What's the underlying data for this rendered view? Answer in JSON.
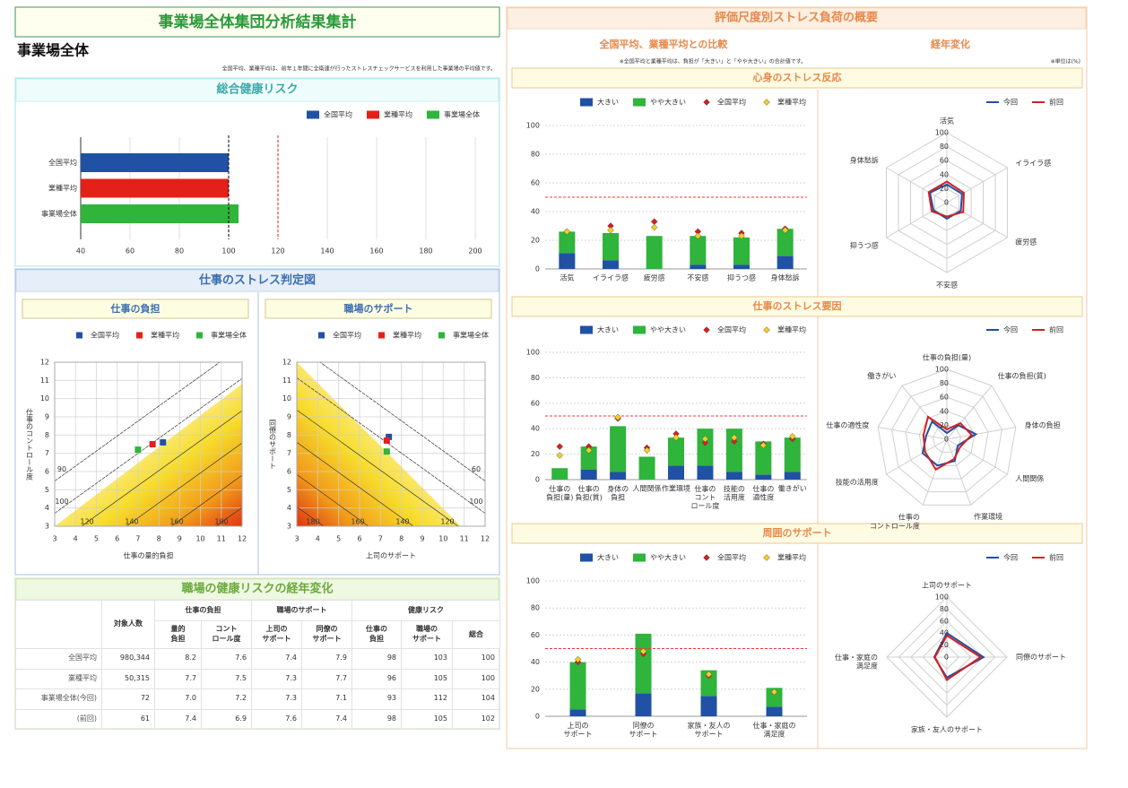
{
  "header": {
    "title": "事業場全体集団分析結果集計",
    "subtitle": "事業場全体",
    "note": "全国平均、業種平均は、前年１年間に全衛連が行ったストレスチェックサービスを利用した事業場の平均値です。"
  },
  "sections": {
    "job_stress": "仕事のストレス判定図"
  },
  "right_panel": {
    "title": "評価尺度別ストレス負荷の概要",
    "compare_heading": "全国平均、業種平均との比較",
    "trend_heading": "経年変化",
    "note": "※全国平均と業種平均は、負担が「大きい」と「やや大きい」の合計値です。",
    "unit_note": "※単位は(%)"
  },
  "chart_data": [
    {
      "type": "hbar",
      "title": "総合健康リスク",
      "categories": [
        "全国平均",
        "業種平均",
        "事業場全体"
      ],
      "values": [
        100,
        100,
        104
      ],
      "colors": [
        "#2151a5",
        "#e32119",
        "#2fb43c"
      ],
      "xlim": [
        40,
        200
      ],
      "xticks": [
        40,
        60,
        80,
        100,
        120,
        140,
        160,
        180,
        200
      ],
      "grid": true,
      "legend": true,
      "reference_lines": [
        {
          "value": 100,
          "color": "#000000"
        },
        {
          "value": 120,
          "color": "#e32119"
        }
      ]
    },
    {
      "type": "scatter",
      "title": "仕事の負担",
      "xlabel": "仕事の量的負担",
      "ylabel": "仕事のコントロール度",
      "xlim": [
        3,
        12
      ],
      "ylim": [
        3,
        12
      ],
      "xticks": [
        3,
        4,
        5,
        6,
        7,
        8,
        9,
        10,
        11,
        12
      ],
      "yticks": [
        3,
        4,
        5,
        6,
        7,
        8,
        9,
        10,
        11,
        12
      ],
      "grid": true,
      "gradient_corner": "bottom-right",
      "contours": [
        90,
        100,
        120,
        140,
        160,
        180
      ],
      "series": [
        {
          "name": "全国平均",
          "color": "#2151a5",
          "x": [
            8.2
          ],
          "values": [
            7.6
          ]
        },
        {
          "name": "業種平均",
          "color": "#e32119",
          "x": [
            7.7
          ],
          "values": [
            7.5
          ]
        },
        {
          "name": "事業場全体",
          "color": "#2fb43c",
          "x": [
            7.0
          ],
          "values": [
            7.2
          ]
        }
      ]
    },
    {
      "type": "scatter",
      "title": "職場のサポート",
      "xlabel": "上司のサポート",
      "ylabel": "同僚のサポート",
      "xlim": [
        3,
        12
      ],
      "ylim": [
        3,
        12
      ],
      "xticks": [
        3,
        4,
        5,
        6,
        7,
        8,
        9,
        10,
        11,
        12
      ],
      "yticks": [
        3,
        4,
        5,
        6,
        7,
        8,
        9,
        10,
        11,
        12
      ],
      "grid": true,
      "gradient_corner": "bottom-left",
      "contours": [
        60,
        100,
        120,
        140,
        160,
        180
      ],
      "series": [
        {
          "name": "全国平均",
          "color": "#2151a5",
          "x": [
            7.4
          ],
          "values": [
            7.9
          ]
        },
        {
          "name": "業種平均",
          "color": "#e32119",
          "x": [
            7.3
          ],
          "values": [
            7.7
          ]
        },
        {
          "name": "事業場全体",
          "color": "#2fb43c",
          "x": [
            7.3
          ],
          "values": [
            7.1
          ]
        }
      ]
    },
    {
      "type": "stacked_bar",
      "title": "心身のストレス反応",
      "categories": [
        "活気",
        "イライラ感",
        "疲労感",
        "不安感",
        "抑うつ感",
        "身体愁訴"
      ],
      "ylim": [
        0,
        100
      ],
      "yticks": [
        0,
        20,
        40,
        60,
        80,
        100
      ],
      "grid": true,
      "series": [
        {
          "name": "大きい",
          "color": "#2151a5",
          "values": [
            11,
            6,
            0,
            3,
            3,
            9
          ]
        },
        {
          "name": "やや大きい",
          "color": "#2fb43c",
          "values": [
            15,
            19,
            23,
            20,
            19,
            19
          ]
        }
      ],
      "points": [
        {
          "name": "全国平均",
          "color": "#d42020",
          "values": [
            26,
            30,
            33,
            26,
            25,
            28
          ]
        },
        {
          "name": "業種平均",
          "color": "#f0d020",
          "values": [
            26,
            27,
            29,
            23,
            23,
            27
          ]
        }
      ],
      "reference_lines": [
        {
          "value": 50,
          "color": "#ff3030"
        }
      ]
    },
    {
      "type": "radar",
      "axes": [
        "活気",
        "イライラ感",
        "疲労感",
        "不安感",
        "抑うつ感",
        "身体愁訴"
      ],
      "rlim": [
        0,
        100
      ],
      "rticks": [
        0,
        20,
        40,
        60,
        80,
        100
      ],
      "series": [
        {
          "name": "今回",
          "color": "#2151a5",
          "values": [
            26,
            25,
            23,
            23,
            22,
            28
          ]
        },
        {
          "name": "前回",
          "color": "#d42020",
          "values": [
            30,
            28,
            27,
            20,
            25,
            30
          ]
        }
      ]
    },
    {
      "type": "stacked_bar",
      "title": "仕事のストレス要因",
      "categories": [
        "仕事の\n負担(量)",
        "仕事の\n負担(質)",
        "身体の\n負担",
        "人間関係",
        "作業環境",
        "仕事の\nコント\nロール度",
        "技能の\n活用度",
        "仕事の\n適性度",
        "働きがい"
      ],
      "ylim": [
        0,
        100
      ],
      "yticks": [
        0,
        20,
        40,
        60,
        80,
        100
      ],
      "grid": true,
      "series": [
        {
          "name": "大きい",
          "color": "#2151a5",
          "values": [
            0,
            8,
            6,
            0,
            11,
            11,
            6,
            4,
            6
          ]
        },
        {
          "name": "やや大きい",
          "color": "#2fb43c",
          "values": [
            9,
            18,
            36,
            18,
            22,
            29,
            34,
            26,
            27
          ]
        }
      ],
      "points": [
        {
          "name": "全国平均",
          "color": "#d42020",
          "values": [
            26,
            26,
            48,
            25,
            36,
            29,
            30,
            28,
            32
          ]
        },
        {
          "name": "業種平均",
          "color": "#f0d020",
          "values": [
            19,
            23,
            49,
            23,
            33,
            32,
            33,
            27,
            34
          ]
        }
      ],
      "reference_lines": [
        {
          "value": 50,
          "color": "#ff3030"
        }
      ]
    },
    {
      "type": "radar",
      "axes": [
        "仕事の負担(量)",
        "仕事の負担(質)",
        "身体の負担",
        "人間関係",
        "作業環境",
        "仕事の\nコントロール度",
        "技能の活用度",
        "仕事の適性度",
        "働きがい"
      ],
      "rlim": [
        0,
        100
      ],
      "rticks": [
        0,
        20,
        40,
        60,
        80,
        100
      ],
      "series": [
        {
          "name": "今回",
          "color": "#2151a5",
          "values": [
            9,
            26,
            42,
            18,
            33,
            40,
            40,
            30,
            33
          ]
        },
        {
          "name": "前回",
          "color": "#d42020",
          "values": [
            14,
            30,
            36,
            22,
            30,
            46,
            36,
            34,
            42
          ]
        }
      ]
    },
    {
      "type": "stacked_bar",
      "title": "周囲のサポート",
      "categories": [
        "上司の\nサポート",
        "同僚の\nサポート",
        "家族・友人の\nサポート",
        "仕事・家庭の\n満足度"
      ],
      "ylim": [
        0,
        100
      ],
      "yticks": [
        0,
        20,
        40,
        60,
        80,
        100
      ],
      "grid": true,
      "series": [
        {
          "name": "大きい",
          "color": "#2151a5",
          "values": [
            5,
            17,
            15,
            7
          ]
        },
        {
          "name": "やや大きい",
          "color": "#2fb43c",
          "values": [
            35,
            44,
            19,
            14
          ]
        }
      ],
      "points": [
        {
          "name": "全国平均",
          "color": "#d42020",
          "values": [
            40,
            46,
            30,
            18
          ]
        },
        {
          "name": "業種平均",
          "color": "#f0d020",
          "values": [
            42,
            48,
            31,
            18
          ]
        }
      ],
      "reference_lines": [
        {
          "value": 50,
          "color": "#ff3030"
        }
      ]
    },
    {
      "type": "radar",
      "axes": [
        "上司のサポート",
        "同僚のサポート",
        "家族・友人のサポート",
        "仕事・家庭の\n満足度"
      ],
      "rlim": [
        0,
        100
      ],
      "rticks": [
        0,
        20,
        40,
        60,
        80,
        100
      ],
      "series": [
        {
          "name": "今回",
          "color": "#2151a5",
          "values": [
            40,
            61,
            34,
            21
          ]
        },
        {
          "name": "前回",
          "color": "#d42020",
          "values": [
            36,
            56,
            38,
            20
          ]
        }
      ]
    }
  ],
  "table": {
    "title": "職場の健康リスクの経年変化",
    "header": [
      "対象人数",
      "仕事の負担",
      "職場のサポート",
      "健康リスク"
    ],
    "subheader": [
      "量的\n負担",
      "コント\nロール度",
      "上司の\nサポート",
      "同僚の\nサポート",
      "仕事の\n負担",
      "職場の\nサポート",
      "総合"
    ],
    "rows": [
      [
        "全国平均",
        "980,344",
        "8.2",
        "7.6",
        "7.4",
        "7.9",
        "98",
        "103",
        "100"
      ],
      [
        "業種平均",
        "50,315",
        "7.7",
        "7.5",
        "7.3",
        "7.7",
        "96",
        "105",
        "100"
      ],
      [
        "事業場全体(今回)",
        "72",
        "7.0",
        "7.2",
        "7.3",
        "7.1",
        "93",
        "112",
        "104"
      ],
      [
        "(前回)",
        "61",
        "7.4",
        "6.9",
        "7.6",
        "7.4",
        "98",
        "105",
        "102"
      ]
    ]
  }
}
